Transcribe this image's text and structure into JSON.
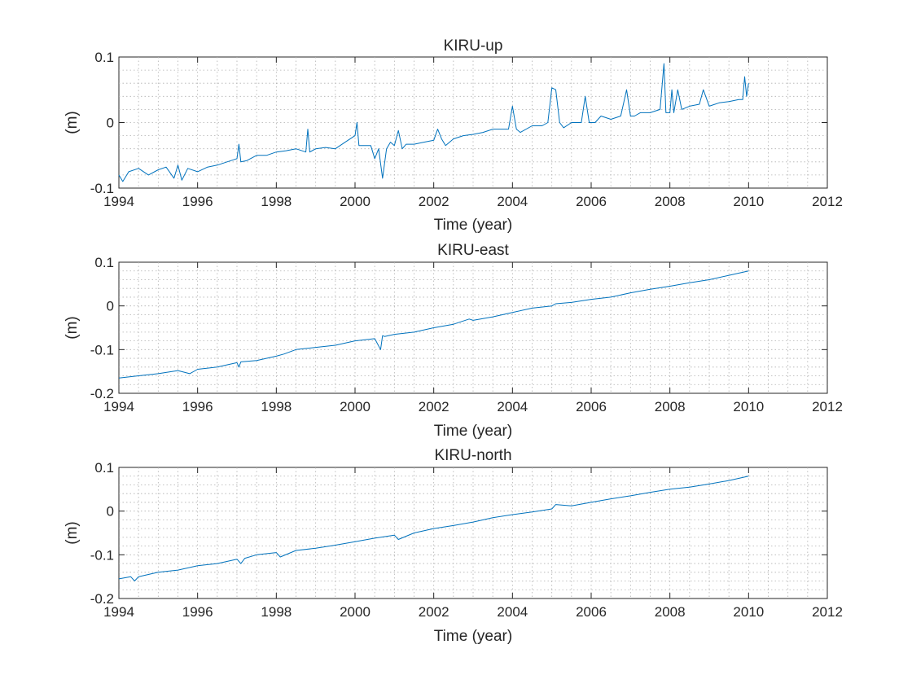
{
  "colors": {
    "series": "#0072BD"
  },
  "chart_data": [
    {
      "type": "line",
      "title": "KIRU-up",
      "xlabel": "Time (year)",
      "ylabel": "(m)",
      "xlim": [
        1994,
        2012
      ],
      "ylim": [
        -0.1,
        0.1
      ],
      "xticks": [
        1994,
        1996,
        1998,
        2000,
        2002,
        2004,
        2006,
        2008,
        2010,
        2012
      ],
      "xtick_labels": [
        "1994",
        "1996",
        "1998",
        "2000",
        "2002",
        "2004",
        "2006",
        "2008",
        "2010",
        "2012"
      ],
      "yticks": [
        -0.1,
        0,
        0.1
      ],
      "ytick_labels": [
        "-0.1",
        "0",
        "0.1"
      ],
      "grid": true,
      "minor_grid": true,
      "series": [
        {
          "x": [
            1994.0,
            1994.1,
            1994.25,
            1994.5,
            1994.75,
            1995.0,
            1995.2,
            1995.4,
            1995.5,
            1995.6,
            1995.75,
            1996.0,
            1996.25,
            1996.5,
            1996.75,
            1997.0,
            1997.05,
            1997.1,
            1997.25,
            1997.5,
            1997.75,
            1998.0,
            1998.25,
            1998.5,
            1998.75,
            1998.8,
            1998.85,
            1999.0,
            1999.25,
            1999.5,
            1999.75,
            2000.0,
            2000.05,
            2000.1,
            2000.25,
            2000.4,
            2000.5,
            2000.6,
            2000.7,
            2000.8,
            2000.9,
            2001.0,
            2001.1,
            2001.2,
            2001.3,
            2001.5,
            2001.75,
            2002.0,
            2002.1,
            2002.2,
            2002.3,
            2002.5,
            2002.75,
            2003.0,
            2003.25,
            2003.5,
            2003.75,
            2003.9,
            2004.0,
            2004.1,
            2004.2,
            2004.5,
            2004.75,
            2004.9,
            2005.0,
            2005.1,
            2005.2,
            2005.3,
            2005.5,
            2005.75,
            2005.85,
            2005.95,
            2006.1,
            2006.25,
            2006.5,
            2006.75,
            2006.9,
            2007.0,
            2007.1,
            2007.25,
            2007.5,
            2007.75,
            2007.85,
            2007.9,
            2008.0,
            2008.05,
            2008.1,
            2008.2,
            2008.3,
            2008.5,
            2008.75,
            2008.85,
            2009.0,
            2009.25,
            2009.5,
            2009.75,
            2009.85,
            2009.9,
            2009.95,
            2010.0
          ],
          "y": [
            -0.08,
            -0.09,
            -0.075,
            -0.07,
            -0.08,
            -0.072,
            -0.068,
            -0.085,
            -0.065,
            -0.088,
            -0.07,
            -0.075,
            -0.068,
            -0.065,
            -0.06,
            -0.055,
            -0.033,
            -0.06,
            -0.058,
            -0.05,
            -0.05,
            -0.045,
            -0.043,
            -0.04,
            -0.045,
            -0.01,
            -0.045,
            -0.04,
            -0.038,
            -0.04,
            -0.03,
            -0.02,
            0.0,
            -0.035,
            -0.035,
            -0.035,
            -0.055,
            -0.04,
            -0.085,
            -0.04,
            -0.03,
            -0.035,
            -0.012,
            -0.04,
            -0.033,
            -0.033,
            -0.03,
            -0.027,
            -0.01,
            -0.025,
            -0.035,
            -0.025,
            -0.02,
            -0.018,
            -0.015,
            -0.01,
            -0.01,
            -0.01,
            0.025,
            -0.01,
            -0.015,
            -0.005,
            -0.005,
            0.0,
            0.053,
            0.05,
            0.0,
            -0.008,
            0.0,
            0.0,
            0.04,
            0.0,
            0.0,
            0.01,
            0.005,
            0.01,
            0.05,
            0.01,
            0.01,
            0.015,
            0.015,
            0.02,
            0.09,
            0.015,
            0.015,
            0.05,
            0.015,
            0.05,
            0.02,
            0.025,
            0.028,
            0.05,
            0.025,
            0.03,
            0.032,
            0.035,
            0.035,
            0.07,
            0.04,
            0.06
          ]
        }
      ]
    },
    {
      "type": "line",
      "title": "KIRU-east",
      "xlabel": "Time (year)",
      "ylabel": "(m)",
      "xlim": [
        1994,
        2012
      ],
      "ylim": [
        -0.2,
        0.1
      ],
      "xticks": [
        1994,
        1996,
        1998,
        2000,
        2002,
        2004,
        2006,
        2008,
        2010,
        2012
      ],
      "xtick_labels": [
        "1994",
        "1996",
        "1998",
        "2000",
        "2002",
        "2004",
        "2006",
        "2008",
        "2010",
        "2012"
      ],
      "yticks": [
        -0.2,
        -0.1,
        0,
        0.1
      ],
      "ytick_labels": [
        "-0.2",
        "-0.1",
        "0",
        "0.1"
      ],
      "grid": true,
      "minor_grid": true,
      "series": [
        {
          "x": [
            1994.0,
            1994.5,
            1995.0,
            1995.5,
            1995.8,
            1996.0,
            1996.5,
            1997.0,
            1997.05,
            1997.1,
            1997.5,
            1998.0,
            1998.2,
            1998.5,
            1999.0,
            1999.5,
            2000.0,
            2000.5,
            2000.65,
            2000.7,
            2000.75,
            2001.0,
            2001.5,
            2002.0,
            2002.5,
            2002.9,
            2003.0,
            2003.5,
            2004.0,
            2004.5,
            2005.0,
            2005.1,
            2005.5,
            2006.0,
            2006.5,
            2007.0,
            2007.5,
            2008.0,
            2008.5,
            2009.0,
            2009.5,
            2010.0
          ],
          "y": [
            -0.165,
            -0.16,
            -0.155,
            -0.148,
            -0.155,
            -0.145,
            -0.14,
            -0.13,
            -0.14,
            -0.128,
            -0.125,
            -0.115,
            -0.11,
            -0.1,
            -0.095,
            -0.09,
            -0.08,
            -0.075,
            -0.1,
            -0.068,
            -0.07,
            -0.065,
            -0.06,
            -0.05,
            -0.042,
            -0.03,
            -0.033,
            -0.025,
            -0.015,
            -0.005,
            0.0,
            0.005,
            0.008,
            0.015,
            0.02,
            0.03,
            0.038,
            0.045,
            0.053,
            0.06,
            0.07,
            0.08
          ]
        }
      ]
    },
    {
      "type": "line",
      "title": "KIRU-north",
      "xlabel": "Time (year)",
      "ylabel": "(m)",
      "xlim": [
        1994,
        2012
      ],
      "ylim": [
        -0.2,
        0.1
      ],
      "xticks": [
        1994,
        1996,
        1998,
        2000,
        2002,
        2004,
        2006,
        2008,
        2010,
        2012
      ],
      "xtick_labels": [
        "1994",
        "1996",
        "1998",
        "2000",
        "2002",
        "2004",
        "2006",
        "2008",
        "2010",
        "2012"
      ],
      "yticks": [
        -0.2,
        -0.1,
        0,
        0.1
      ],
      "ytick_labels": [
        "-0.2",
        "-0.1",
        "0",
        "0.1"
      ],
      "grid": true,
      "minor_grid": true,
      "series": [
        {
          "x": [
            1994.0,
            1994.3,
            1994.4,
            1994.5,
            1995.0,
            1995.5,
            1996.0,
            1996.5,
            1997.0,
            1997.1,
            1997.2,
            1997.5,
            1998.0,
            1998.1,
            1998.5,
            1999.0,
            1999.5,
            2000.0,
            2000.5,
            2001.0,
            2001.1,
            2001.5,
            2002.0,
            2002.5,
            2003.0,
            2003.5,
            2004.0,
            2004.5,
            2005.0,
            2005.1,
            2005.5,
            2006.0,
            2006.5,
            2007.0,
            2007.5,
            2008.0,
            2008.5,
            2009.0,
            2009.5,
            2010.0
          ],
          "y": [
            -0.155,
            -0.15,
            -0.16,
            -0.15,
            -0.14,
            -0.135,
            -0.125,
            -0.12,
            -0.11,
            -0.12,
            -0.108,
            -0.1,
            -0.095,
            -0.105,
            -0.09,
            -0.085,
            -0.078,
            -0.07,
            -0.062,
            -0.055,
            -0.065,
            -0.05,
            -0.04,
            -0.033,
            -0.025,
            -0.015,
            -0.008,
            -0.002,
            0.005,
            0.015,
            0.012,
            0.02,
            0.028,
            0.035,
            0.043,
            0.05,
            0.055,
            0.062,
            0.07,
            0.08
          ]
        }
      ]
    }
  ]
}
